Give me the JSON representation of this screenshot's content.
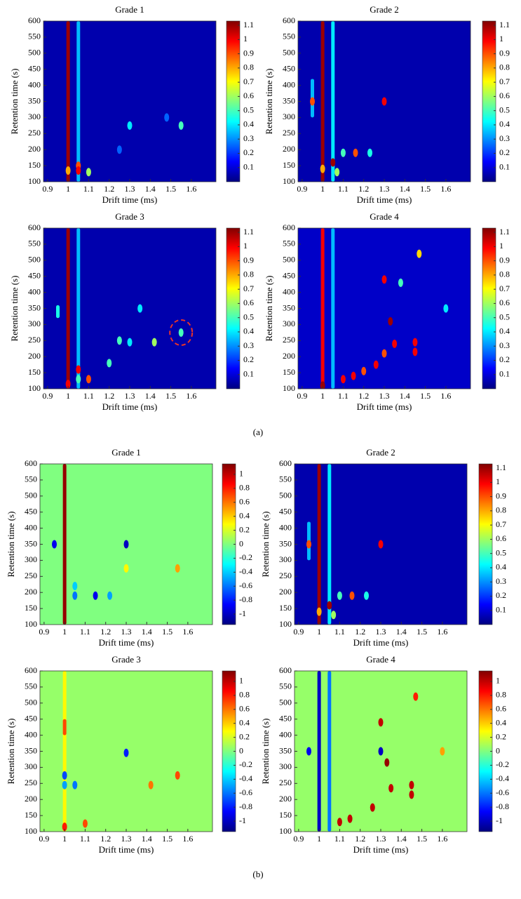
{
  "chart_data": [
    {
      "type": "heatmap",
      "title": "Grade 1",
      "xlabel": "Drift time (ms)",
      "ylabel": "Retention time (s)",
      "xlim": [
        0.88,
        1.72
      ],
      "ylim": [
        100,
        600
      ],
      "xticks": [
        0.9,
        1,
        1.1,
        1.2,
        1.3,
        1.4,
        1.5,
        1.6
      ],
      "yticks": [
        100,
        150,
        200,
        250,
        300,
        350,
        400,
        450,
        500,
        550,
        600
      ],
      "colormap": "jet",
      "clim": [
        0,
        1.13
      ],
      "cticks": [
        0.1,
        0.2,
        0.3,
        0.4,
        0.5,
        0.6,
        0.7,
        0.8,
        0.9,
        1,
        1.1
      ],
      "background": 0.05,
      "streaks": {
        "x": [
          1,
          1.05
        ],
        "y_start": [
          100,
          100
        ],
        "y_end": [
          600,
          600
        ],
        "values": [
          1.1,
          0.35
        ]
      },
      "spots": {
        "x": [
          1.3,
          1.55,
          1.05,
          1.05,
          1.1,
          1,
          1.25,
          1.48
        ],
        "y": [
          275,
          275,
          150,
          135,
          130,
          135,
          200,
          300
        ],
        "values": [
          0.4,
          0.5,
          0.9,
          1,
          0.6,
          0.8,
          0.25,
          0.25
        ]
      }
    },
    {
      "type": "heatmap",
      "title": "Grade 2",
      "xlabel": "Drift time (ms)",
      "ylabel": "Retention time (s)",
      "xlim": [
        0.88,
        1.72
      ],
      "ylim": [
        100,
        600
      ],
      "xticks": [
        0.9,
        1,
        1.1,
        1.2,
        1.3,
        1.4,
        1.5,
        1.6
      ],
      "yticks": [
        100,
        150,
        200,
        250,
        300,
        350,
        400,
        450,
        500,
        550,
        600
      ],
      "colormap": "jet",
      "clim": [
        0,
        1.13
      ],
      "cticks": [
        0.1,
        0.2,
        0.3,
        0.4,
        0.5,
        0.6,
        0.7,
        0.8,
        0.9,
        1,
        1.1
      ],
      "background": 0.05,
      "streaks": {
        "x": [
          1,
          0.95,
          1.05
        ],
        "y_start": [
          100,
          300,
          100
        ],
        "y_end": [
          600,
          420,
          600
        ],
        "values": [
          1.1,
          0.35,
          0.4
        ]
      },
      "spots": {
        "x": [
          0.95,
          1.3,
          1.05,
          1.16,
          1.1,
          1.23,
          1.07,
          1
        ],
        "y": [
          350,
          350,
          160,
          190,
          190,
          190,
          130,
          140
        ],
        "values": [
          0.9,
          1,
          1.1,
          0.9,
          0.5,
          0.45,
          0.6,
          0.8
        ]
      }
    },
    {
      "type": "heatmap",
      "title": "Grade 3",
      "xlabel": "Drift time (ms)",
      "ylabel": "Retention time (s)",
      "xlim": [
        0.88,
        1.72
      ],
      "ylim": [
        100,
        600
      ],
      "xticks": [
        0.9,
        1,
        1.1,
        1.2,
        1.3,
        1.4,
        1.5,
        1.6
      ],
      "yticks": [
        100,
        150,
        200,
        250,
        300,
        350,
        400,
        450,
        500,
        550,
        600
      ],
      "colormap": "jet",
      "clim": [
        0,
        1.13
      ],
      "cticks": [
        0.1,
        0.2,
        0.3,
        0.4,
        0.5,
        0.6,
        0.7,
        0.8,
        0.9,
        1,
        1.1
      ],
      "background": 0.05,
      "streaks": {
        "x": [
          1,
          1.05,
          0.95
        ],
        "y_start": [
          100,
          100,
          320
        ],
        "y_end": [
          600,
          600,
          360
        ],
        "values": [
          1.1,
          0.35,
          0.45
        ]
      },
      "spots": {
        "x": [
          1.05,
          1,
          1.1,
          1.42,
          1.55,
          1.3,
          1.35,
          1.2,
          1.05,
          1.25
        ],
        "y": [
          160,
          115,
          130,
          245,
          275,
          245,
          350,
          180,
          130,
          250
        ],
        "values": [
          1,
          1,
          0.9,
          0.6,
          0.5,
          0.4,
          0.4,
          0.5,
          0.5,
          0.5
        ]
      },
      "highlight": {
        "x": 1.55,
        "y": 275
      }
    },
    {
      "type": "heatmap",
      "title": "Grade 4",
      "xlabel": "Drift time (ms)",
      "ylabel": "Retention time (s)",
      "xlim": [
        0.88,
        1.72
      ],
      "ylim": [
        100,
        600
      ],
      "xticks": [
        0.9,
        1,
        1.1,
        1.2,
        1.3,
        1.4,
        1.5,
        1.6
      ],
      "yticks": [
        100,
        150,
        200,
        250,
        300,
        350,
        400,
        450,
        500,
        550,
        600
      ],
      "colormap": "jet",
      "clim": [
        0,
        1.13
      ],
      "cticks": [
        0.1,
        0.2,
        0.3,
        0.4,
        0.5,
        0.6,
        0.7,
        0.8,
        0.9,
        1,
        1.1
      ],
      "background": 0.08,
      "streaks": {
        "x": [
          1,
          1.05
        ],
        "y_start": [
          100,
          100
        ],
        "y_end": [
          600,
          600
        ],
        "values": [
          1,
          0.35
        ]
      },
      "spots": {
        "x": [
          1.3,
          1.47,
          1.33,
          1.35,
          1.45,
          1.45,
          1.3,
          1.26,
          1.2,
          1.15,
          1.1,
          1,
          1.38,
          1.6
        ],
        "y": [
          440,
          520,
          310,
          240,
          245,
          215,
          210,
          175,
          155,
          140,
          130,
          110,
          430,
          350
        ],
        "values": [
          1,
          0.75,
          1.1,
          1,
          1,
          1,
          0.9,
          1,
          0.9,
          1,
          1,
          1.1,
          0.5,
          0.4
        ]
      }
    },
    {
      "type": "heatmap",
      "title": "Grade 1",
      "xlabel": "Drift time (ms)",
      "ylabel": "Retention time (s)",
      "xlim": [
        0.88,
        1.72
      ],
      "ylim": [
        100,
        600
      ],
      "xticks": [
        0.9,
        1,
        1.1,
        1.2,
        1.3,
        1.4,
        1.5,
        1.6
      ],
      "yticks": [
        100,
        150,
        200,
        250,
        300,
        350,
        400,
        450,
        500,
        550,
        600
      ],
      "colormap": "jet",
      "clim": [
        -1.15,
        1.15
      ],
      "cticks": [
        -1,
        -0.8,
        -0.6,
        -0.4,
        -0.2,
        0,
        0.2,
        0.4,
        0.6,
        0.8,
        1
      ],
      "background": 0,
      "streaks": {
        "x": [
          1
        ],
        "y_start": [
          100
        ],
        "y_end": [
          600
        ],
        "values": [
          1.1
        ]
      },
      "spots": {
        "x": [
          0.95,
          1.3,
          1.15,
          1.05,
          1.22,
          1.55,
          1.3,
          1.05
        ],
        "y": [
          350,
          350,
          190,
          190,
          190,
          275,
          275,
          220
        ],
        "values": [
          -0.9,
          -1,
          -0.9,
          -0.6,
          -0.5,
          0.5,
          0.3,
          -0.4
        ]
      }
    },
    {
      "type": "heatmap",
      "title": "Grade 2",
      "xlabel": "Drift time (ms)",
      "ylabel": "Retention time (s)",
      "xlim": [
        0.88,
        1.72
      ],
      "ylim": [
        100,
        600
      ],
      "xticks": [
        0.9,
        1,
        1.1,
        1.2,
        1.3,
        1.4,
        1.5,
        1.6
      ],
      "yticks": [
        100,
        150,
        200,
        250,
        300,
        350,
        400,
        450,
        500,
        550,
        600
      ],
      "colormap": "jet",
      "clim": [
        0,
        1.13
      ],
      "cticks": [
        0.1,
        0.2,
        0.3,
        0.4,
        0.5,
        0.6,
        0.7,
        0.8,
        0.9,
        1,
        1.1
      ],
      "background": 0.05,
      "streaks": {
        "x": [
          1,
          0.95,
          1.05
        ],
        "y_start": [
          100,
          300,
          100
        ],
        "y_end": [
          600,
          420,
          600
        ],
        "values": [
          1.1,
          0.35,
          0.4
        ]
      },
      "spots": {
        "x": [
          0.95,
          1.3,
          1.05,
          1.16,
          1.1,
          1.23,
          1.07,
          1
        ],
        "y": [
          350,
          350,
          160,
          190,
          190,
          190,
          130,
          140
        ],
        "values": [
          0.9,
          1,
          1.1,
          0.9,
          0.5,
          0.45,
          0.6,
          0.8
        ]
      }
    },
    {
      "type": "heatmap",
      "title": "Grade 3",
      "xlabel": "Drift time (ms)",
      "ylabel": "Retention time (s)",
      "xlim": [
        0.88,
        1.72
      ],
      "ylim": [
        100,
        600
      ],
      "xticks": [
        0.9,
        1,
        1.1,
        1.2,
        1.3,
        1.4,
        1.5,
        1.6
      ],
      "yticks": [
        100,
        150,
        200,
        250,
        300,
        350,
        400,
        450,
        500,
        550,
        600
      ],
      "colormap": "jet",
      "clim": [
        -1.15,
        1.15
      ],
      "cticks": [
        -1,
        -0.8,
        -0.6,
        -0.4,
        -0.2,
        0,
        0.2,
        0.4,
        0.6,
        0.8,
        1
      ],
      "background": 0.05,
      "streaks": {
        "x": [
          1,
          1
        ],
        "y_start": [
          100,
          400
        ],
        "y_end": [
          600,
          450
        ],
        "values": [
          0.3,
          0.7
        ]
      },
      "spots": {
        "x": [
          1,
          1,
          1.05,
          1.3,
          1.55,
          1.42,
          1.1,
          1
        ],
        "y": [
          115,
          275,
          245,
          345,
          275,
          245,
          125,
          245
        ],
        "values": [
          0.8,
          -0.7,
          -0.6,
          -0.8,
          0.7,
          0.6,
          0.7,
          -0.5
        ]
      }
    },
    {
      "type": "heatmap",
      "title": "Grade 4",
      "xlabel": "Drift time (ms)",
      "ylabel": "Retention time (s)",
      "xlim": [
        0.88,
        1.72
      ],
      "ylim": [
        100,
        600
      ],
      "xticks": [
        0.9,
        1,
        1.1,
        1.2,
        1.3,
        1.4,
        1.5,
        1.6
      ],
      "yticks": [
        100,
        150,
        200,
        250,
        300,
        350,
        400,
        450,
        500,
        550,
        600
      ],
      "colormap": "jet",
      "clim": [
        -1.15,
        1.15
      ],
      "cticks": [
        -1,
        -0.8,
        -0.6,
        -0.4,
        -0.2,
        0,
        0.2,
        0.4,
        0.6,
        0.8,
        1
      ],
      "background": 0.05,
      "streaks": {
        "x": [
          1,
          1.05
        ],
        "y_start": [
          100,
          100
        ],
        "y_end": [
          600,
          600
        ],
        "values": [
          -1,
          -0.6
        ]
      },
      "spots": {
        "x": [
          0.95,
          1.3,
          1.3,
          1.47,
          1.33,
          1.45,
          1.45,
          1.35,
          1.26,
          1.15,
          1.1,
          1.6
        ],
        "y": [
          350,
          350,
          440,
          520,
          315,
          245,
          215,
          235,
          175,
          140,
          130,
          350
        ],
        "values": [
          -0.9,
          -1,
          1,
          0.8,
          1.1,
          1,
          1,
          1,
          1,
          1,
          1,
          0.5
        ]
      }
    }
  ],
  "figure_labels": [
    "(a)",
    "(b)"
  ]
}
